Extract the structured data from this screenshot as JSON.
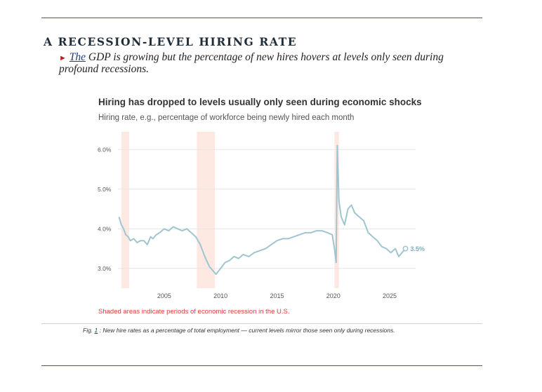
{
  "article": {
    "heading": "A RECESSION-LEVEL HIRING RATE",
    "lede_marker": "►",
    "lede_lead": "The",
    "lede_text": " GDP is growing but the percentage of new hires hovers at levels only seen during profound recessions."
  },
  "caption": {
    "prefix": "Fig.",
    "number": "1",
    "separator": " : ",
    "text": " New hire rates as a percentage of total employment — current levels mirror those seen only during recessions."
  },
  "colors": {
    "rule": "#b03040",
    "line": "#9fc5d0",
    "recession_band": "#fde8e2",
    "note": "#e03a3a",
    "grid": "#e6e6e6"
  },
  "chart_data": {
    "type": "line",
    "title": "Hiring has dropped to levels usually only seen during economic shocks",
    "subtitle": "Hiring rate, e.g., percentage of workforce being newly hired each month",
    "note": "Shaded areas indicate periods of economic recession in the U.S.",
    "xlim": [
      2000.9,
      2027.3
    ],
    "ylim": [
      2.5,
      6.5
    ],
    "yticks": [
      3.0,
      4.0,
      5.0,
      6.0
    ],
    "ytick_labels": [
      "3.0%",
      "4.0%",
      "5.0%",
      "6.0%"
    ],
    "xticks": [
      2005,
      2010,
      2015,
      2020,
      2025
    ],
    "xtick_labels": [
      "2005",
      "2010",
      "2015",
      "2020",
      "2025"
    ],
    "grid": true,
    "legend": "none",
    "recessions": [
      [
        2001.2,
        2001.9
      ],
      [
        2007.9,
        2009.5
      ],
      [
        2020.1,
        2020.5
      ]
    ],
    "end_label": "3.5%",
    "series": [
      {
        "x": [
          2001.0,
          2001.2,
          2001.4,
          2001.6,
          2001.8,
          2002.0,
          2002.3,
          2002.6,
          2002.9,
          2003.2,
          2003.5,
          2003.8,
          2004.0,
          2004.3,
          2004.6,
          2005.0,
          2005.4,
          2005.8,
          2006.2,
          2006.6,
          2007.0,
          2007.4,
          2007.8,
          2008.2,
          2008.6,
          2009.0,
          2009.3,
          2009.6,
          2010.0,
          2010.4,
          2010.8,
          2011.2,
          2011.6,
          2012.0,
          2012.5,
          2013.0,
          2013.5,
          2014.0,
          2014.5,
          2015.0,
          2015.5,
          2016.0,
          2016.5,
          2017.0,
          2017.5,
          2018.0,
          2018.5,
          2019.0,
          2019.5,
          2019.9,
          2020.1,
          2020.25,
          2020.35,
          2020.5,
          2020.7,
          2021.0,
          2021.3,
          2021.6,
          2021.9,
          2022.3,
          2022.7,
          2023.1,
          2023.5,
          2023.9,
          2024.3,
          2024.7,
          2025.1,
          2025.5,
          2025.8,
          2026.1,
          2026.4
        ],
        "y": [
          4.3,
          4.1,
          4.0,
          3.85,
          3.8,
          3.7,
          3.75,
          3.65,
          3.7,
          3.7,
          3.6,
          3.8,
          3.75,
          3.85,
          3.9,
          4.0,
          3.95,
          4.05,
          4.0,
          3.95,
          4.0,
          3.9,
          3.8,
          3.6,
          3.3,
          3.05,
          2.95,
          2.85,
          3.0,
          3.15,
          3.2,
          3.3,
          3.25,
          3.35,
          3.3,
          3.4,
          3.45,
          3.5,
          3.6,
          3.7,
          3.75,
          3.75,
          3.8,
          3.85,
          3.9,
          3.9,
          3.95,
          3.95,
          3.9,
          3.85,
          3.5,
          3.15,
          6.1,
          4.7,
          4.3,
          4.1,
          4.5,
          4.6,
          4.4,
          4.3,
          4.2,
          3.9,
          3.8,
          3.7,
          3.55,
          3.5,
          3.4,
          3.5,
          3.3,
          3.4,
          3.5
        ]
      }
    ]
  }
}
